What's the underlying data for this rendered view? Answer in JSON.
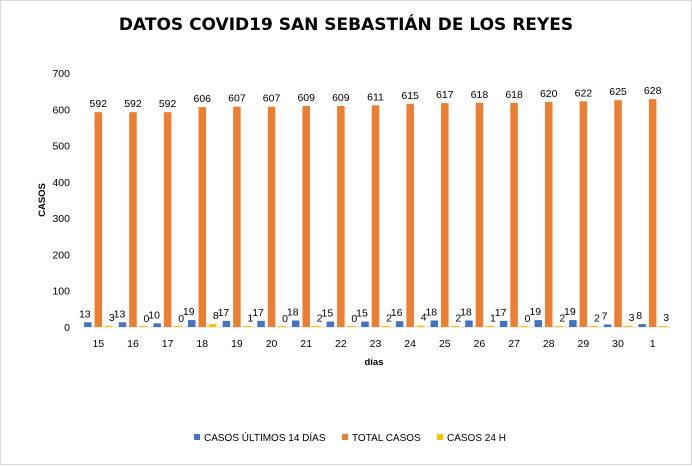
{
  "chart_data": {
    "type": "bar",
    "title": "DATOS COVID19 SAN SEBASTIÁN DE LOS REYES",
    "xlabel": "días",
    "ylabel": "CASOS",
    "ylim": [
      0,
      700
    ],
    "yticks": [
      0,
      100,
      200,
      300,
      400,
      500,
      600,
      700
    ],
    "grid": false,
    "legend_position": "bottom",
    "categories": [
      "15",
      "16",
      "17",
      "18",
      "19",
      "20",
      "21",
      "22",
      "23",
      "24",
      "25",
      "26",
      "27",
      "28",
      "29",
      "30",
      "1"
    ],
    "series": [
      {
        "name": "CASOS ÚLTIMOS 14 DÍAS",
        "color": "#4472c4",
        "values": [
          13,
          13,
          10,
          19,
          17,
          17,
          18,
          15,
          15,
          16,
          18,
          18,
          17,
          19,
          19,
          7,
          8
        ]
      },
      {
        "name": "TOTAL CASOS",
        "color": "#ed7d31",
        "values": [
          592,
          592,
          592,
          606,
          607,
          607,
          609,
          609,
          611,
          615,
          617,
          618,
          618,
          620,
          622,
          625,
          628
        ]
      },
      {
        "name": "CASOS 24 H",
        "color": "#ffc000",
        "values": [
          3,
          0,
          0,
          8,
          1,
          0,
          2,
          0,
          2,
          4,
          2,
          1,
          0,
          2,
          2,
          3,
          3
        ]
      }
    ]
  }
}
